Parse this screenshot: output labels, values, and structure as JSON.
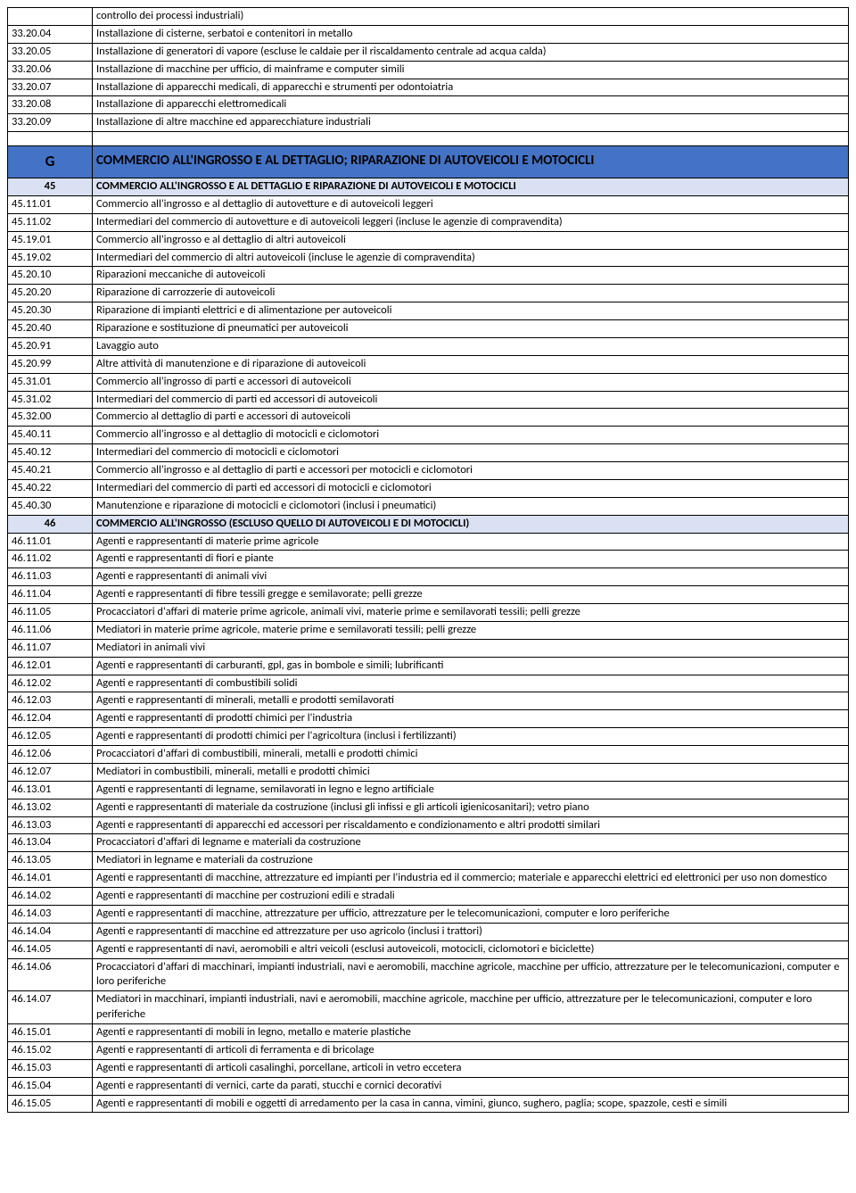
{
  "colors": {
    "section_bg": "#4472c4",
    "subsection_bg": "#d9e1f2",
    "border": "#000000",
    "text": "#000000",
    "page_bg": "#ffffff"
  },
  "rows": [
    {
      "type": "item",
      "code": "",
      "desc": "controllo dei processi industriali)"
    },
    {
      "type": "item",
      "code": "33.20.04",
      "desc": "Installazione di cisterne, serbatoi e contenitori in metallo"
    },
    {
      "type": "item",
      "code": "33.20.05",
      "desc": "Installazione di generatori di vapore (escluse le caldaie per il riscaldamento centrale ad acqua calda)"
    },
    {
      "type": "item",
      "code": "33.20.06",
      "desc": "Installazione di macchine per ufficio, di mainframe e computer simili"
    },
    {
      "type": "item",
      "code": "33.20.07",
      "desc": "Installazione di apparecchi medicali, di apparecchi e strumenti per odontoiatria"
    },
    {
      "type": "item",
      "code": "33.20.08",
      "desc": "Installazione di apparecchi elettromedicali"
    },
    {
      "type": "item",
      "code": "33.20.09",
      "desc": "Installazione di altre macchine ed apparecchiature industriali"
    },
    {
      "type": "spacer"
    },
    {
      "type": "section",
      "code": "G",
      "desc": "COMMERCIO ALL'INGROSSO E AL DETTAGLIO; RIPARAZIONE DI AUTOVEICOLI E MOTOCICLI"
    },
    {
      "type": "sub",
      "code": "45",
      "desc": "COMMERCIO ALL'INGROSSO E AL DETTAGLIO E RIPARAZIONE DI AUTOVEICOLI E MOTOCICLI"
    },
    {
      "type": "item",
      "code": "45.11.01",
      "desc": "Commercio all'ingrosso e al dettaglio di autovetture e di autoveicoli leggeri"
    },
    {
      "type": "item",
      "code": "45.11.02",
      "desc": "Intermediari del commercio di autovetture e di autoveicoli leggeri (incluse le agenzie di compravendita)"
    },
    {
      "type": "item",
      "code": "45.19.01",
      "desc": "Commercio all'ingrosso e al dettaglio di altri autoveicoli"
    },
    {
      "type": "item",
      "code": "45.19.02",
      "desc": "Intermediari del commercio di altri autoveicoli (incluse le agenzie di compravendita)"
    },
    {
      "type": "item",
      "code": "45.20.10",
      "desc": "Riparazioni meccaniche di autoveicoli"
    },
    {
      "type": "item",
      "code": "45.20.20",
      "desc": "Riparazione di carrozzerie di autoveicoli"
    },
    {
      "type": "item",
      "code": "45.20.30",
      "desc": "Riparazione di impianti elettrici e di alimentazione per autoveicoli"
    },
    {
      "type": "item",
      "code": "45.20.40",
      "desc": "Riparazione e sostituzione di pneumatici per autoveicoli"
    },
    {
      "type": "item",
      "code": "45.20.91",
      "desc": "Lavaggio auto"
    },
    {
      "type": "item",
      "code": "45.20.99",
      "desc": "Altre attività di manutenzione e di riparazione di autoveicoli"
    },
    {
      "type": "item",
      "code": "45.31.01",
      "desc": "Commercio all'ingrosso di parti e accessori di autoveicoli"
    },
    {
      "type": "item",
      "code": "45.31.02",
      "desc": "Intermediari del commercio di parti ed accessori di autoveicoli"
    },
    {
      "type": "item",
      "code": "45.32.00",
      "desc": "Commercio al dettaglio di parti e accessori di autoveicoli"
    },
    {
      "type": "item",
      "code": "45.40.11",
      "desc": "Commercio all'ingrosso e al dettaglio di motocicli e ciclomotori"
    },
    {
      "type": "item",
      "code": "45.40.12",
      "desc": "Intermediari del commercio di motocicli e ciclomotori"
    },
    {
      "type": "item",
      "code": "45.40.21",
      "desc": "Commercio all'ingrosso e al dettaglio di parti e accessori per motocicli e ciclomotori"
    },
    {
      "type": "item",
      "code": "45.40.22",
      "desc": "Intermediari del commercio di parti ed accessori di motocicli e ciclomotori"
    },
    {
      "type": "item",
      "code": "45.40.30",
      "desc": "Manutenzione e riparazione di motocicli e ciclomotori (inclusi i pneumatici)"
    },
    {
      "type": "sub",
      "code": "46",
      "desc": "COMMERCIO ALL'INGROSSO (ESCLUSO QUELLO DI AUTOVEICOLI E DI MOTOCICLI)"
    },
    {
      "type": "item",
      "code": "46.11.01",
      "desc": "Agenti e rappresentanti di materie prime agricole"
    },
    {
      "type": "item",
      "code": "46.11.02",
      "desc": "Agenti e rappresentanti di fiori e piante"
    },
    {
      "type": "item",
      "code": "46.11.03",
      "desc": "Agenti e rappresentanti di animali vivi"
    },
    {
      "type": "item",
      "code": "46.11.04",
      "desc": "Agenti e rappresentanti di fibre tessili gregge e semilavorate; pelli grezze"
    },
    {
      "type": "item",
      "code": "46.11.05",
      "desc": "Procacciatori d'affari di materie prime agricole, animali vivi, materie prime e semilavorati tessili; pelli grezze"
    },
    {
      "type": "item",
      "code": "46.11.06",
      "desc": "Mediatori in materie prime agricole, materie prime e semilavorati tessili; pelli grezze"
    },
    {
      "type": "item",
      "code": "46.11.07",
      "desc": "Mediatori in animali vivi"
    },
    {
      "type": "item",
      "code": "46.12.01",
      "desc": "Agenti e rappresentanti di carburanti, gpl, gas in bombole e simili; lubrificanti"
    },
    {
      "type": "item",
      "code": "46.12.02",
      "desc": "Agenti e rappresentanti di combustibili solidi"
    },
    {
      "type": "item",
      "code": "46.12.03",
      "desc": "Agenti e rappresentanti di minerali, metalli e prodotti semilavorati"
    },
    {
      "type": "item",
      "code": "46.12.04",
      "desc": "Agenti e rappresentanti di prodotti chimici per l'industria"
    },
    {
      "type": "item",
      "code": "46.12.05",
      "desc": "Agenti e rappresentanti di prodotti chimici per l'agricoltura (inclusi i fertilizzanti)"
    },
    {
      "type": "item",
      "code": "46.12.06",
      "desc": "Procacciatori d'affari di combustibili, minerali, metalli e prodotti chimici"
    },
    {
      "type": "item",
      "code": "46.12.07",
      "desc": "Mediatori in combustibili, minerali, metalli e prodotti chimici"
    },
    {
      "type": "item",
      "code": "46.13.01",
      "desc": "Agenti e rappresentanti di legname, semilavorati in legno e legno artificiale"
    },
    {
      "type": "item",
      "code": "46.13.02",
      "desc": "Agenti e rappresentanti di materiale da costruzione (inclusi gli infissi e gli articoli igienicosanitari); vetro piano"
    },
    {
      "type": "item",
      "code": "46.13.03",
      "desc": "Agenti e rappresentanti di apparecchi ed accessori per riscaldamento e condizionamento e altri prodotti similari"
    },
    {
      "type": "item",
      "code": "46.13.04",
      "desc": "Procacciatori d'affari di legname e materiali da costruzione"
    },
    {
      "type": "item",
      "code": "46.13.05",
      "desc": "Mediatori in legname e materiali da costruzione"
    },
    {
      "type": "item",
      "code": "46.14.01",
      "desc": "Agenti e rappresentanti di macchine, attrezzature ed impianti per l'industria ed il commercio; materiale e apparecchi elettrici ed elettronici per uso non domestico"
    },
    {
      "type": "item",
      "code": "46.14.02",
      "desc": "Agenti e rappresentanti di macchine per costruzioni edili e stradali"
    },
    {
      "type": "item",
      "code": "46.14.03",
      "desc": "Agenti e rappresentanti di macchine, attrezzature per ufficio, attrezzature per le telecomunicazioni, computer e loro periferiche"
    },
    {
      "type": "item",
      "code": "46.14.04",
      "desc": "Agenti e rappresentanti di macchine ed attrezzature per uso agricolo (inclusi i trattori)"
    },
    {
      "type": "item",
      "code": "46.14.05",
      "desc": "Agenti e rappresentanti di navi, aeromobili e altri veicoli (esclusi autoveicoli, motocicli, ciclomotori e biciclette)"
    },
    {
      "type": "item",
      "code": "46.14.06",
      "desc": "Procacciatori d'affari di macchinari, impianti industriali, navi e aeromobili, macchine agricole, macchine per ufficio, attrezzature per le telecomunicazioni, computer e loro periferiche"
    },
    {
      "type": "item",
      "code": "46.14.07",
      "desc": "Mediatori in macchinari, impianti industriali, navi e aeromobili, macchine agricole, macchine per ufficio, attrezzature per le telecomunicazioni, computer e loro periferiche"
    },
    {
      "type": "item",
      "code": "46.15.01",
      "desc": "Agenti e rappresentanti di mobili in legno, metallo e materie plastiche"
    },
    {
      "type": "item",
      "code": "46.15.02",
      "desc": "Agenti e rappresentanti di articoli di ferramenta e di bricolage"
    },
    {
      "type": "item",
      "code": "46.15.03",
      "desc": "Agenti e rappresentanti di articoli casalinghi, porcellane, articoli in vetro eccetera"
    },
    {
      "type": "item",
      "code": "46.15.04",
      "desc": "Agenti e rappresentanti di vernici, carte da parati, stucchi e cornici decorativi"
    },
    {
      "type": "item",
      "code": "46.15.05",
      "desc": "Agenti e rappresentanti di mobili e oggetti di arredamento per la casa in canna, vimini, giunco, sughero, paglia; scope, spazzole, cesti e simili"
    }
  ]
}
